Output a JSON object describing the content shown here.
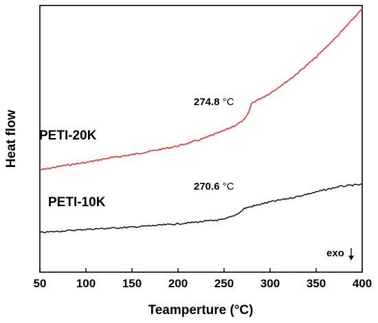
{
  "chart_data": {
    "type": "line",
    "xlabel": "Teamperture (°C)",
    "ylabel": "Heat flow",
    "xlim": [
      50,
      400
    ],
    "xticks": [
      "50",
      "100",
      "150",
      "200",
      "250",
      "300",
      "350",
      "400"
    ],
    "y_ticks_shown": false,
    "grid": false,
    "legend": "none",
    "series": [
      {
        "name": "PETI-20K",
        "color": "#e8302f",
        "x": [
          50,
          75,
          100,
          125,
          150,
          175,
          200,
          225,
          250,
          265,
          272,
          276,
          280,
          300,
          325,
          350,
          375,
          400
        ],
        "y": [
          0.63,
          0.67,
          0.7,
          0.74,
          0.77,
          0.81,
          0.85,
          0.91,
          0.99,
          1.05,
          1.09,
          1.14,
          1.24,
          1.33,
          1.48,
          1.66,
          1.87,
          2.1
        ]
      },
      {
        "name": "PETI-10K",
        "color": "#1a1a1a",
        "x": [
          50,
          100,
          150,
          200,
          250,
          262,
          268,
          272,
          276,
          300,
          325,
          350,
          375,
          400
        ],
        "y": [
          0.06,
          0.09,
          0.11,
          0.14,
          0.18,
          0.22,
          0.25,
          0.28,
          0.29,
          0.34,
          0.38,
          0.43,
          0.48,
          0.5
        ]
      }
    ],
    "annotations": [
      {
        "value": "274.8",
        "unit": "°C",
        "series": "PETI-20K"
      },
      {
        "value": "270.6",
        "unit": "°C",
        "series": "PETI-10K"
      },
      {
        "text": "exo",
        "arrow": "down"
      }
    ]
  }
}
